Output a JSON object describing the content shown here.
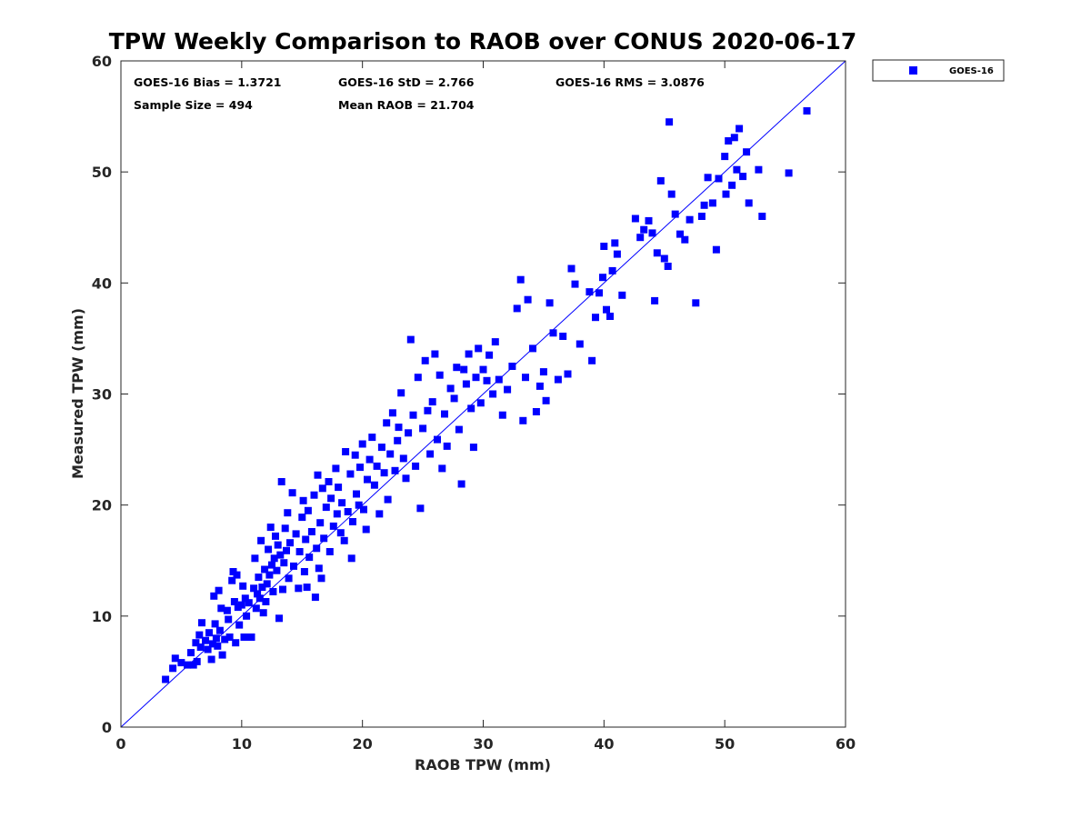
{
  "chart_data": {
    "type": "scatter",
    "title": "TPW Weekly Comparison to RAOB over CONUS 2020-06-17",
    "xlabel": "RAOB TPW (mm)",
    "ylabel": "Measured TPW (mm)",
    "xlim": [
      0,
      60
    ],
    "ylim": [
      0,
      60
    ],
    "xticks": [
      "0",
      "10",
      "20",
      "30",
      "40",
      "50",
      "60"
    ],
    "yticks": [
      "0",
      "10",
      "20",
      "30",
      "40",
      "50",
      "60"
    ],
    "grid": false,
    "legend_position": "outside top-right",
    "stats": {
      "bias": "GOES-16 Bias = 1.3721",
      "std": "GOES-16 StD = 2.766",
      "rms": "GOES-16 RMS = 3.0876",
      "sample_size": "Sample Size = 494",
      "mean_raob": "Mean RAOB = 21.704"
    },
    "reference_line": {
      "name": "1:1 line",
      "from": [
        0,
        0
      ],
      "to": [
        60,
        60
      ]
    },
    "series": [
      {
        "name": "GOES-16",
        "color": "#0000ff",
        "marker": "square",
        "points": [
          [
            3.7,
            4.3
          ],
          [
            4.3,
            5.3
          ],
          [
            4.5,
            6.2
          ],
          [
            5.0,
            5.8
          ],
          [
            5.5,
            5.6
          ],
          [
            5.8,
            6.7
          ],
          [
            6.0,
            5.6
          ],
          [
            6.2,
            7.6
          ],
          [
            6.3,
            5.9
          ],
          [
            6.5,
            8.3
          ],
          [
            6.6,
            7.2
          ],
          [
            6.7,
            9.4
          ],
          [
            7.0,
            7.8
          ],
          [
            7.2,
            7.0
          ],
          [
            7.3,
            8.5
          ],
          [
            7.5,
            6.1
          ],
          [
            7.6,
            7.5
          ],
          [
            7.7,
            11.8
          ],
          [
            7.8,
            9.3
          ],
          [
            7.9,
            8.0
          ],
          [
            8.0,
            7.3
          ],
          [
            8.1,
            12.3
          ],
          [
            8.2,
            8.7
          ],
          [
            8.3,
            10.7
          ],
          [
            8.4,
            6.5
          ],
          [
            8.6,
            7.9
          ],
          [
            8.8,
            10.5
          ],
          [
            8.9,
            9.7
          ],
          [
            9.0,
            8.1
          ],
          [
            9.2,
            13.2
          ],
          [
            9.3,
            14.0
          ],
          [
            9.4,
            11.3
          ],
          [
            9.5,
            7.6
          ],
          [
            9.6,
            13.7
          ],
          [
            9.7,
            10.8
          ],
          [
            9.8,
            9.2
          ],
          [
            10.0,
            11.0
          ],
          [
            10.1,
            12.7
          ],
          [
            10.2,
            8.1
          ],
          [
            10.3,
            11.6
          ],
          [
            10.4,
            10.0
          ],
          [
            10.6,
            11.2
          ],
          [
            10.8,
            8.1
          ],
          [
            11.0,
            12.5
          ],
          [
            11.1,
            15.2
          ],
          [
            11.2,
            10.7
          ],
          [
            11.3,
            12.0
          ],
          [
            11.4,
            13.5
          ],
          [
            11.5,
            11.6
          ],
          [
            11.6,
            16.8
          ],
          [
            11.7,
            12.6
          ],
          [
            11.8,
            10.3
          ],
          [
            11.9,
            14.2
          ],
          [
            12.0,
            11.3
          ],
          [
            12.1,
            12.9
          ],
          [
            12.2,
            16.0
          ],
          [
            12.3,
            13.7
          ],
          [
            12.4,
            18.0
          ],
          [
            12.5,
            14.6
          ],
          [
            12.6,
            12.2
          ],
          [
            12.7,
            15.2
          ],
          [
            12.8,
            17.2
          ],
          [
            12.9,
            14.1
          ],
          [
            13.0,
            16.4
          ],
          [
            13.1,
            9.8
          ],
          [
            13.2,
            15.5
          ],
          [
            13.3,
            22.1
          ],
          [
            13.4,
            12.4
          ],
          [
            13.5,
            14.8
          ],
          [
            13.6,
            17.9
          ],
          [
            13.7,
            15.9
          ],
          [
            13.8,
            19.3
          ],
          [
            13.9,
            13.4
          ],
          [
            14.0,
            16.6
          ],
          [
            14.2,
            21.1
          ],
          [
            14.3,
            14.5
          ],
          [
            14.5,
            17.4
          ],
          [
            14.7,
            12.5
          ],
          [
            14.8,
            15.8
          ],
          [
            15.0,
            18.9
          ],
          [
            15.1,
            20.4
          ],
          [
            15.2,
            14.0
          ],
          [
            15.3,
            16.9
          ],
          [
            15.4,
            12.6
          ],
          [
            15.5,
            19.5
          ],
          [
            15.6,
            15.3
          ],
          [
            15.8,
            17.6
          ],
          [
            16.0,
            20.9
          ],
          [
            16.1,
            11.7
          ],
          [
            16.2,
            16.1
          ],
          [
            16.3,
            22.7
          ],
          [
            16.4,
            14.3
          ],
          [
            16.5,
            18.4
          ],
          [
            16.6,
            13.4
          ],
          [
            16.7,
            21.5
          ],
          [
            16.8,
            17.0
          ],
          [
            17.0,
            19.8
          ],
          [
            17.2,
            22.1
          ],
          [
            17.3,
            15.8
          ],
          [
            17.4,
            20.6
          ],
          [
            17.6,
            18.1
          ],
          [
            17.8,
            23.3
          ],
          [
            17.9,
            19.2
          ],
          [
            18.0,
            21.6
          ],
          [
            18.2,
            17.5
          ],
          [
            18.3,
            20.2
          ],
          [
            18.5,
            16.8
          ],
          [
            18.6,
            24.8
          ],
          [
            18.8,
            19.4
          ],
          [
            19.0,
            22.8
          ],
          [
            19.1,
            15.2
          ],
          [
            19.2,
            18.5
          ],
          [
            19.4,
            24.5
          ],
          [
            19.5,
            21.0
          ],
          [
            19.7,
            20.0
          ],
          [
            19.8,
            23.4
          ],
          [
            20.0,
            25.5
          ],
          [
            20.1,
            19.6
          ],
          [
            20.3,
            17.8
          ],
          [
            20.4,
            22.3
          ],
          [
            20.6,
            24.1
          ],
          [
            20.8,
            26.1
          ],
          [
            21.0,
            21.8
          ],
          [
            21.2,
            23.5
          ],
          [
            21.4,
            19.2
          ],
          [
            21.6,
            25.2
          ],
          [
            21.8,
            22.9
          ],
          [
            22.0,
            27.4
          ],
          [
            22.1,
            20.5
          ],
          [
            22.3,
            24.6
          ],
          [
            22.5,
            28.3
          ],
          [
            22.7,
            23.1
          ],
          [
            22.9,
            25.8
          ],
          [
            23.0,
            27.0
          ],
          [
            23.2,
            30.1
          ],
          [
            23.4,
            24.2
          ],
          [
            23.6,
            22.4
          ],
          [
            23.8,
            26.5
          ],
          [
            24.0,
            34.9
          ],
          [
            24.2,
            28.1
          ],
          [
            24.4,
            23.5
          ],
          [
            24.6,
            31.5
          ],
          [
            24.8,
            19.7
          ],
          [
            25.0,
            26.9
          ],
          [
            25.2,
            33.0
          ],
          [
            25.4,
            28.5
          ],
          [
            25.6,
            24.6
          ],
          [
            25.8,
            29.3
          ],
          [
            26.0,
            33.6
          ],
          [
            26.2,
            25.9
          ],
          [
            26.4,
            31.7
          ],
          [
            26.6,
            23.3
          ],
          [
            26.8,
            28.2
          ],
          [
            27.0,
            25.3
          ],
          [
            27.3,
            30.5
          ],
          [
            27.6,
            29.6
          ],
          [
            27.8,
            32.4
          ],
          [
            28.0,
            26.8
          ],
          [
            28.2,
            21.9
          ],
          [
            28.4,
            32.2
          ],
          [
            28.6,
            30.9
          ],
          [
            28.8,
            33.6
          ],
          [
            29.0,
            28.7
          ],
          [
            29.2,
            25.2
          ],
          [
            29.4,
            31.5
          ],
          [
            29.6,
            34.1
          ],
          [
            29.8,
            29.2
          ],
          [
            30.0,
            32.2
          ],
          [
            30.3,
            31.2
          ],
          [
            30.5,
            33.5
          ],
          [
            30.8,
            30.0
          ],
          [
            31.0,
            34.7
          ],
          [
            31.3,
            31.3
          ],
          [
            31.6,
            28.1
          ],
          [
            32.0,
            30.4
          ],
          [
            32.4,
            32.5
          ],
          [
            32.8,
            37.7
          ],
          [
            33.1,
            40.3
          ],
          [
            33.3,
            27.6
          ],
          [
            33.5,
            31.5
          ],
          [
            33.7,
            38.5
          ],
          [
            34.1,
            34.1
          ],
          [
            34.4,
            28.4
          ],
          [
            34.7,
            30.7
          ],
          [
            35.0,
            32.0
          ],
          [
            35.2,
            29.4
          ],
          [
            35.5,
            38.2
          ],
          [
            35.8,
            35.5
          ],
          [
            36.2,
            31.3
          ],
          [
            36.6,
            35.2
          ],
          [
            37.0,
            31.8
          ],
          [
            37.3,
            41.3
          ],
          [
            37.6,
            39.9
          ],
          [
            38.0,
            34.5
          ],
          [
            38.8,
            39.2
          ],
          [
            39.0,
            33.0
          ],
          [
            39.3,
            36.9
          ],
          [
            39.6,
            39.1
          ],
          [
            39.9,
            40.5
          ],
          [
            40.0,
            43.3
          ],
          [
            40.2,
            37.6
          ],
          [
            40.5,
            37.0
          ],
          [
            40.7,
            41.1
          ],
          [
            40.9,
            43.6
          ],
          [
            41.1,
            42.6
          ],
          [
            41.5,
            38.9
          ],
          [
            42.6,
            45.8
          ],
          [
            43.0,
            44.1
          ],
          [
            43.3,
            44.8
          ],
          [
            43.7,
            45.6
          ],
          [
            44.0,
            44.5
          ],
          [
            44.2,
            38.4
          ],
          [
            44.4,
            42.7
          ],
          [
            44.7,
            49.2
          ],
          [
            45.0,
            42.2
          ],
          [
            45.3,
            41.5
          ],
          [
            45.4,
            54.5
          ],
          [
            45.6,
            48.0
          ],
          [
            45.9,
            46.2
          ],
          [
            46.3,
            44.4
          ],
          [
            46.7,
            43.9
          ],
          [
            47.1,
            45.7
          ],
          [
            47.6,
            38.2
          ],
          [
            48.1,
            46.0
          ],
          [
            48.3,
            47.0
          ],
          [
            48.6,
            49.5
          ],
          [
            49.0,
            47.2
          ],
          [
            49.3,
            43.0
          ],
          [
            49.5,
            49.4
          ],
          [
            50.0,
            51.4
          ],
          [
            50.1,
            48.0
          ],
          [
            50.3,
            52.8
          ],
          [
            50.6,
            48.8
          ],
          [
            50.8,
            53.1
          ],
          [
            51.0,
            50.2
          ],
          [
            51.2,
            53.9
          ],
          [
            51.5,
            49.6
          ],
          [
            51.8,
            51.8
          ],
          [
            52.0,
            47.2
          ],
          [
            52.8,
            50.2
          ],
          [
            53.1,
            46.0
          ],
          [
            55.3,
            49.9
          ],
          [
            56.8,
            55.5
          ]
        ]
      }
    ]
  }
}
